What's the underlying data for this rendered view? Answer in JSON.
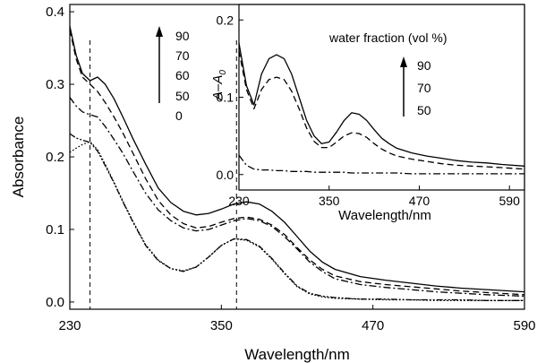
{
  "chart_data": [
    {
      "type": "line",
      "xlabel": "Wavelength/nm",
      "ylabel": "Absorbance",
      "xlim": [
        230,
        590
      ],
      "ylim": [
        -0.01,
        0.41
      ],
      "xticks": [
        230,
        350,
        470,
        590
      ],
      "yticks": [
        0.0,
        0.1,
        0.2,
        0.3,
        0.4
      ],
      "x_tick_labels": [
        "230",
        "350",
        "470",
        "590"
      ],
      "y_tick_labels": [
        "0.0",
        "0.1",
        "0.2",
        "0.3",
        "0.4"
      ],
      "legend": {
        "values": [
          "90",
          "70",
          "60",
          "50",
          "0"
        ],
        "placement": "top-center, arrow pointing up"
      },
      "reference_lines_x": [
        246,
        362
      ],
      "x": [
        230,
        235,
        240,
        246,
        252,
        258,
        265,
        272,
        280,
        290,
        300,
        310,
        320,
        330,
        340,
        350,
        360,
        370,
        380,
        390,
        400,
        410,
        420,
        430,
        440,
        460,
        480,
        500,
        520,
        540,
        560,
        590
      ],
      "series": [
        {
          "name": "90",
          "style": "solid",
          "values": [
            0.38,
            0.34,
            0.315,
            0.305,
            0.31,
            0.3,
            0.28,
            0.255,
            0.225,
            0.19,
            0.157,
            0.137,
            0.125,
            0.12,
            0.122,
            0.128,
            0.135,
            0.138,
            0.135,
            0.125,
            0.11,
            0.09,
            0.07,
            0.055,
            0.045,
            0.035,
            0.03,
            0.026,
            0.022,
            0.019,
            0.017,
            0.014
          ]
        },
        {
          "name": "70",
          "style": "dash",
          "values": [
            0.375,
            0.335,
            0.31,
            0.3,
            0.29,
            0.275,
            0.255,
            0.233,
            0.205,
            0.17,
            0.14,
            0.12,
            0.108,
            0.102,
            0.104,
            0.11,
            0.115,
            0.117,
            0.114,
            0.106,
            0.093,
            0.075,
            0.058,
            0.045,
            0.036,
            0.028,
            0.024,
            0.021,
            0.018,
            0.015,
            0.013,
            0.01
          ]
        },
        {
          "name": "60",
          "style": "dash-dot",
          "values": [
            0.282,
            0.27,
            0.262,
            0.258,
            0.255,
            0.242,
            0.224,
            0.205,
            0.18,
            0.15,
            0.127,
            0.112,
            0.102,
            0.098,
            0.1,
            0.106,
            0.112,
            0.115,
            0.112,
            0.104,
            0.09,
            0.073,
            0.055,
            0.042,
            0.032,
            0.024,
            0.02,
            0.017,
            0.014,
            0.012,
            0.01,
            0.008
          ]
        },
        {
          "name": "50",
          "style": "dash-dot-dot",
          "values": [
            0.232,
            0.226,
            0.223,
            0.22,
            0.208,
            0.188,
            0.164,
            0.138,
            0.11,
            0.078,
            0.057,
            0.046,
            0.042,
            0.048,
            0.062,
            0.078,
            0.087,
            0.086,
            0.077,
            0.06,
            0.04,
            0.022,
            0.012,
            0.008,
            0.006,
            0.004,
            0.004,
            0.003,
            0.003,
            0.003,
            0.002,
            0.002
          ]
        },
        {
          "name": "0",
          "style": "dot",
          "values": [
            0.206,
            0.212,
            0.217,
            0.221,
            0.21,
            0.19,
            0.165,
            0.139,
            0.111,
            0.079,
            0.058,
            0.046,
            0.043,
            0.048,
            0.062,
            0.078,
            0.087,
            0.085,
            0.076,
            0.059,
            0.039,
            0.021,
            0.011,
            0.007,
            0.005,
            0.004,
            0.003,
            0.003,
            0.002,
            0.002,
            0.002,
            0.002
          ]
        }
      ]
    },
    {
      "type": "line",
      "xlabel": "Wavelength/nm",
      "ylabel_main": "A",
      "ylabel_dash": "–",
      "ylabel_sub_base": "A",
      "ylabel_subscript": "0",
      "xlim": [
        230,
        610
      ],
      "ylim": [
        -0.02,
        0.22
      ],
      "xticks": [
        230,
        350,
        470,
        590
      ],
      "yticks": [
        0.0,
        0.1,
        0.2
      ],
      "x_tick_labels": [
        "230",
        "350",
        "470",
        "590"
      ],
      "y_tick_labels": [
        "0.0",
        "0.1",
        "0.2"
      ],
      "legend": {
        "title": "water fraction (vol %)",
        "values": [
          "90",
          "70",
          "50"
        ],
        "placement": "top-right, arrow pointing up"
      },
      "x": [
        230,
        240,
        250,
        260,
        270,
        280,
        290,
        300,
        310,
        320,
        330,
        340,
        350,
        360,
        370,
        380,
        390,
        400,
        410,
        420,
        430,
        440,
        460,
        480,
        500,
        520,
        540,
        560,
        580,
        610
      ],
      "series": [
        {
          "name": "90",
          "style": "solid",
          "values": [
            0.17,
            0.115,
            0.09,
            0.13,
            0.15,
            0.155,
            0.15,
            0.13,
            0.1,
            0.07,
            0.05,
            0.04,
            0.042,
            0.055,
            0.07,
            0.08,
            0.078,
            0.07,
            0.058,
            0.047,
            0.04,
            0.034,
            0.028,
            0.024,
            0.021,
            0.018,
            0.016,
            0.015,
            0.013,
            0.011
          ]
        },
        {
          "name": "70",
          "style": "dash",
          "values": [
            0.16,
            0.11,
            0.085,
            0.11,
            0.123,
            0.126,
            0.123,
            0.108,
            0.085,
            0.06,
            0.043,
            0.035,
            0.035,
            0.042,
            0.05,
            0.054,
            0.053,
            0.048,
            0.04,
            0.033,
            0.028,
            0.024,
            0.02,
            0.017,
            0.014,
            0.012,
            0.011,
            0.01,
            0.009,
            0.007
          ]
        },
        {
          "name": "50",
          "style": "dash-dot",
          "values": [
            0.025,
            0.012,
            0.007,
            0.006,
            0.006,
            0.005,
            0.005,
            0.004,
            0.004,
            0.004,
            0.003,
            0.003,
            0.003,
            0.003,
            0.003,
            0.002,
            0.002,
            0.002,
            0.002,
            0.002,
            0.002,
            0.002,
            0.001,
            0.001,
            0.001,
            0.001,
            0.001,
            0.001,
            0.001,
            0.001
          ]
        }
      ]
    }
  ]
}
